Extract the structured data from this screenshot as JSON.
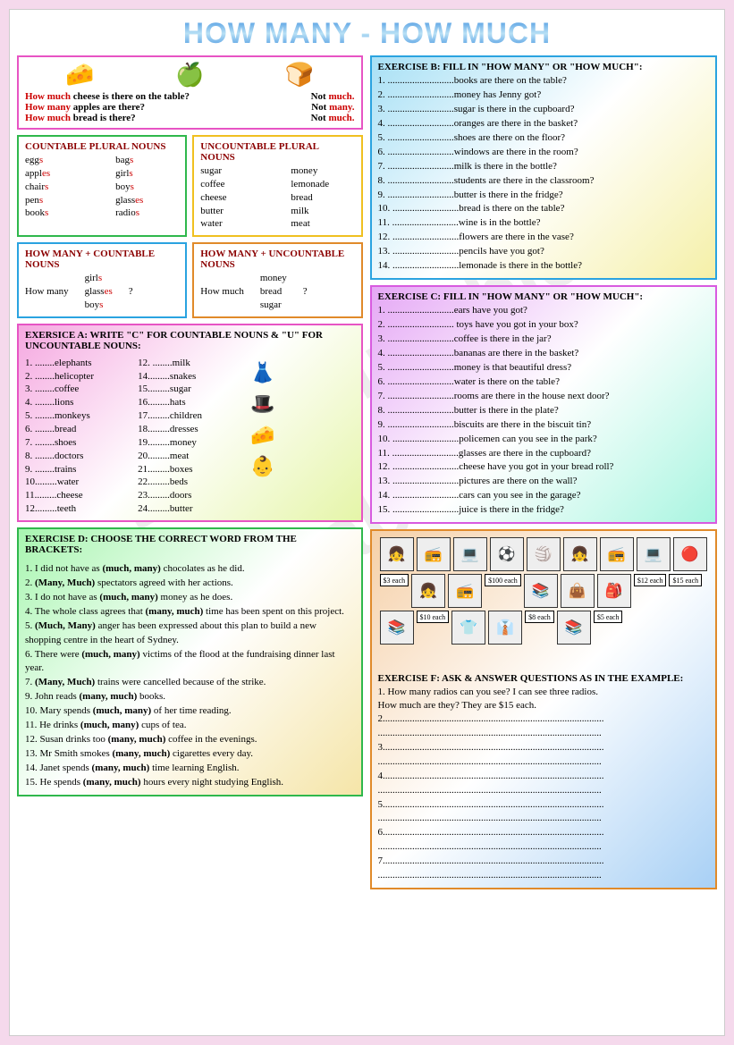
{
  "title": "HOW MANY - HOW MUCH",
  "intro": {
    "q1": "How much cheese is there on the table?",
    "a1": "Not much.",
    "q2": "How many apples are there?",
    "a2": "Not many.",
    "q3": "How much bread is there?",
    "a3": "Not much.",
    "border": "#e754c4"
  },
  "countable": {
    "heading": "COUNTABLE PLURAL NOUNS",
    "col1": [
      "eggs",
      "apples",
      "chairs",
      "pens",
      "books"
    ],
    "col2": [
      "bags",
      "girls",
      "boys",
      "glasses",
      "radios"
    ],
    "border": "#2fb84c"
  },
  "uncountable": {
    "heading": "UNCOUNTABLE PLURAL NOUNS",
    "col1": [
      "sugar",
      "coffee",
      "cheese",
      "butter",
      "water"
    ],
    "col2": [
      "money",
      "lemonade",
      "bread",
      "milk",
      "meat"
    ],
    "border": "#f0c020"
  },
  "howmany": {
    "heading": "HOW MANY + COUNTABLE NOUNS",
    "left": "How many",
    "items": [
      "girls",
      "glasses",
      "boys"
    ],
    "q": "?",
    "border": "#2aa3e0"
  },
  "howmuch": {
    "heading": "HOW MANY + UNCOUNTABLE NOUNS",
    "left": "How much",
    "items": [
      "money",
      "bread",
      "sugar"
    ],
    "q": "?",
    "border": "#e08a2a"
  },
  "exA": {
    "heading": "EXERSICE A: WRITE \"C\" FOR COUNTABLE NOUNS & \"U\" FOR UNCOUNTABLE NOUNS:",
    "left": [
      "1. ........elephants",
      "2. ........helicopter",
      "3. ........coffee",
      "4. ........lions",
      "5. ........monkeys",
      "6. ........bread",
      "7. ........shoes",
      "8. ........doctors",
      "9. ........trains",
      "10.........water",
      "11.........cheese",
      "12.........teeth"
    ],
    "right": [
      "12. ........milk",
      "14.........snakes",
      "15.........sugar",
      "16.........hats",
      "17.........children",
      "18.........dresses",
      "19.........money",
      "20.........meat",
      "21.........boxes",
      "22.........beds",
      "23.........doors",
      "24.........butter"
    ],
    "border": "#e754c4",
    "grad1": "#f5a8e0",
    "grad2": "#e5f5a8"
  },
  "exD": {
    "heading": "EXERCISE D: CHOOSE THE CORRECT WORD FROM THE BRACKETS:",
    "items": [
      "1. I did not have as (much, many) chocolates as he did.",
      "2. (Many, Much) spectators agreed with her actions.",
      "3. I do not have as (much, many) money as he does.",
      "4. The whole class agrees that (many, much) time has been spent on this project.",
      "5. (Much, Many) anger has been expressed about this plan to build a new shopping centre in the heart of Sydney.",
      "6. There were (much, many) victims of the flood at the fundraising dinner last year.",
      "7. (Many, Much) trains were cancelled because of the strike.",
      "9. John reads (many, much) books.",
      "10. Mary spends (much, many) of her time reading.",
      "11. He drinks (much, many) cups of tea.",
      "12. Susan drinks too (many, much) coffee in the evenings.",
      "13. Mr Smith smokes (many, much) cigarettes every day.",
      "14. Janet spends (many, much) time learning English.",
      "15. He spends (many, much) hours every night studying English."
    ],
    "border": "#2fb84c",
    "grad1": "#a8f5b0",
    "grad2": "#f5e5a8"
  },
  "exB": {
    "heading": "EXERCISE B: FILL IN \"HOW MANY\" OR \"HOW MUCH\":",
    "items": [
      "1. ...........................books are there on the table?",
      "2. ...........................money has Jenny got?",
      "3. ...........................sugar is there in the cupboard?",
      "4. ...........................oranges are there in the basket?",
      "5. ...........................shoes are there on the floor?",
      "6. ...........................windows are there in the room?",
      "7. ...........................milk is there in the bottle?",
      "8. ...........................students are there in the classroom?",
      "9. ...........................butter is there in the fridge?",
      "10. ...........................bread is there on the table?",
      "11. ...........................wine is in the bottle?",
      "12. ...........................flowers are there in the vase?",
      "13. ...........................pencils have you got?",
      "14. ...........................lemonade is there in the bottle?"
    ],
    "border": "#2aa3e0",
    "grad1": "#a8e0f5",
    "grad2": "#f5f0a8"
  },
  "exC": {
    "heading": "EXERCISE C: FILL IN \"HOW MANY\" OR \"HOW MUCH\":",
    "items": [
      "1. ...........................ears have you got?",
      "2. ........................... toys have you got in your box?",
      "3. ...........................coffee is there in the jar?",
      "4. ...........................bananas are there in the basket?",
      "5. ...........................money is that beautiful dress?",
      "6. ...........................water is there on the table?",
      "7. ...........................rooms are there in the house next door?",
      "8. ...........................butter is there in the plate?",
      "9. ...........................biscuits are there in the biscuit tin?",
      "10. ...........................policemen can you see in the park?",
      "11. ...........................glasses are there in the cupboard?",
      "12. ...........................cheese have you got in your bread roll?",
      "13. ...........................pictures are there on the wall?",
      "14. ...........................cars can you see in the garage?",
      "15. ...........................juice is there in the fridge?"
    ],
    "border": "#d85ae0",
    "grad1": "#e5a8f5",
    "grad2": "#a8f5e0"
  },
  "exF": {
    "heading": "EXERCISE F: ASK & ANSWER QUESTIONS AS IN THE EXAMPLE:",
    "example1": "1. How many radios can you see? I can see three radios.",
    "example2": "    How much are they? They are $15 each.",
    "lines": [
      "2..........................................................................................",
      "...........................................................................................",
      "3..........................................................................................",
      "...........................................................................................",
      "4..........................................................................................",
      "...........................................................................................",
      "5..........................................................................................",
      "...........................................................................................",
      "6..........................................................................................",
      "...........................................................................................",
      "7..........................................................................................",
      "..........................................................................................."
    ],
    "prices": [
      "$12 each",
      "$15 each",
      "$100 each",
      "$3 each",
      "$8 each",
      "$5 each",
      "$10 each"
    ],
    "border": "#e08a2a",
    "grad1": "#f5d0a8",
    "grad2": "#a8d0f5"
  }
}
